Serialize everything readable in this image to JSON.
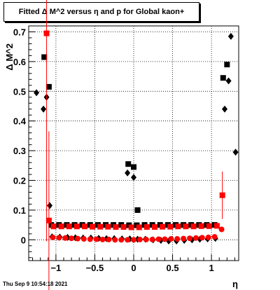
{
  "chart_data": {
    "type": "scatter",
    "title": "Fitted Δ M^2 versus η and p for Global kaon+",
    "xlabel": "η",
    "ylabel": "Δ M^2",
    "xlim": [
      -1.35,
      1.35
    ],
    "ylim": [
      -0.07,
      0.72
    ],
    "grid": true,
    "x_ticks": [
      -1,
      -0.5,
      0,
      0.5,
      1
    ],
    "x_tick_labels": [
      "−1",
      "−0.5",
      "0",
      "0.5",
      "1"
    ],
    "y_ticks": [
      0,
      0.1,
      0.2,
      0.3,
      0.4,
      0.5,
      0.6,
      0.7
    ],
    "y_tick_labels": [
      "0",
      "0.1",
      "0.2",
      "0.3",
      "0.4",
      "0.5",
      "0.6",
      "0.7"
    ],
    "series": [
      {
        "color": "#000000",
        "marker": "square",
        "points": [
          {
            "x": -1.15,
            "y": 0.615
          },
          {
            "x": -1.09,
            "y": 0.515
          },
          {
            "x": -0.07,
            "y": 0.255
          },
          {
            "x": 0.0,
            "y": 0.245
          },
          {
            "x": 0.05,
            "y": 0.1
          },
          {
            "x": 1.15,
            "y": 0.545
          },
          {
            "x": 1.2,
            "y": 0.59
          },
          {
            "x": -1.06,
            "y": 0.05
          },
          {
            "x": -0.96,
            "y": 0.05
          },
          {
            "x": -0.86,
            "y": 0.05
          },
          {
            "x": -0.76,
            "y": 0.05
          },
          {
            "x": -0.66,
            "y": 0.05
          },
          {
            "x": -0.56,
            "y": 0.05
          },
          {
            "x": -0.46,
            "y": 0.05
          },
          {
            "x": -0.36,
            "y": 0.05
          },
          {
            "x": -0.26,
            "y": 0.05
          },
          {
            "x": -0.16,
            "y": 0.05
          },
          {
            "x": -0.06,
            "y": 0.049
          },
          {
            "x": 0.04,
            "y": 0.049
          },
          {
            "x": 0.14,
            "y": 0.05
          },
          {
            "x": 0.24,
            "y": 0.05
          },
          {
            "x": 0.34,
            "y": 0.05
          },
          {
            "x": 0.44,
            "y": 0.05
          },
          {
            "x": 0.54,
            "y": 0.05
          },
          {
            "x": 0.64,
            "y": 0.05
          },
          {
            "x": 0.74,
            "y": 0.05
          },
          {
            "x": 0.84,
            "y": 0.05
          },
          {
            "x": 0.94,
            "y": 0.05
          },
          {
            "x": 1.04,
            "y": 0.05
          }
        ]
      },
      {
        "color": "#000000",
        "marker": "diamond",
        "points": [
          {
            "x": -1.25,
            "y": 0.495
          },
          {
            "x": -1.16,
            "y": 0.44
          },
          {
            "x": -1.12,
            "y": 0.48
          },
          {
            "x": -1.08,
            "y": 0.115
          },
          {
            "x": -0.08,
            "y": 0.225
          },
          {
            "x": 0.0,
            "y": 0.21
          },
          {
            "x": 1.17,
            "y": 0.44
          },
          {
            "x": 1.22,
            "y": 0.535
          },
          {
            "x": 1.25,
            "y": 0.685
          },
          {
            "x": 1.31,
            "y": 0.295
          },
          {
            "x": -1.05,
            "y": 0.01
          },
          {
            "x": -0.95,
            "y": 0.009
          },
          {
            "x": -0.85,
            "y": 0.008
          },
          {
            "x": -0.75,
            "y": 0.007
          },
          {
            "x": -0.65,
            "y": 0.006
          },
          {
            "x": -0.55,
            "y": 0.006
          },
          {
            "x": -0.45,
            "y": 0.005
          },
          {
            "x": -0.35,
            "y": 0.004
          },
          {
            "x": -0.25,
            "y": 0.004
          },
          {
            "x": -0.15,
            "y": 0.003
          },
          {
            "x": -0.05,
            "y": 0.003
          },
          {
            "x": 0.05,
            "y": 0.002
          },
          {
            "x": 0.15,
            "y": 0.002
          },
          {
            "x": 0.25,
            "y": 0.0
          },
          {
            "x": 0.35,
            "y": -0.002
          },
          {
            "x": 0.45,
            "y": -0.004
          },
          {
            "x": 0.55,
            "y": -0.004
          },
          {
            "x": 0.65,
            "y": -0.002
          },
          {
            "x": 0.75,
            "y": 0.0
          },
          {
            "x": 0.85,
            "y": 0.002
          },
          {
            "x": 0.95,
            "y": 0.003
          },
          {
            "x": 1.05,
            "y": 0.005
          }
        ]
      },
      {
        "color": "#ff0000",
        "marker": "square",
        "points": [
          {
            "x": -1.12,
            "y": 0.695,
            "err": 0.7
          },
          {
            "x": -1.09,
            "y": 0.065,
            "err": 0.3
          },
          {
            "x": -1.03,
            "y": 0.045
          },
          {
            "x": -0.93,
            "y": 0.045
          },
          {
            "x": -0.83,
            "y": 0.045
          },
          {
            "x": -0.73,
            "y": 0.045
          },
          {
            "x": -0.63,
            "y": 0.045
          },
          {
            "x": -0.53,
            "y": 0.044
          },
          {
            "x": -0.43,
            "y": 0.044
          },
          {
            "x": -0.33,
            "y": 0.044
          },
          {
            "x": -0.23,
            "y": 0.043
          },
          {
            "x": -0.13,
            "y": 0.043
          },
          {
            "x": -0.03,
            "y": 0.042
          },
          {
            "x": 0.07,
            "y": 0.042
          },
          {
            "x": 0.17,
            "y": 0.043
          },
          {
            "x": 0.27,
            "y": 0.043
          },
          {
            "x": 0.37,
            "y": 0.044
          },
          {
            "x": 0.47,
            "y": 0.044
          },
          {
            "x": 0.57,
            "y": 0.045
          },
          {
            "x": 0.67,
            "y": 0.045
          },
          {
            "x": 0.77,
            "y": 0.045
          },
          {
            "x": 0.87,
            "y": 0.046
          },
          {
            "x": 0.97,
            "y": 0.046
          },
          {
            "x": 1.07,
            "y": 0.047
          },
          {
            "x": 1.14,
            "y": 0.15,
            "err": 0.08
          }
        ]
      },
      {
        "color": "#ff0000",
        "marker": "circle",
        "points": [
          {
            "x": -1.04,
            "y": 0.008
          },
          {
            "x": -0.96,
            "y": 0.007
          },
          {
            "x": -0.88,
            "y": 0.006
          },
          {
            "x": -0.8,
            "y": 0.005
          },
          {
            "x": -0.72,
            "y": 0.004
          },
          {
            "x": -0.64,
            "y": 0.003
          },
          {
            "x": -0.56,
            "y": 0.002
          },
          {
            "x": -0.48,
            "y": 0.002
          },
          {
            "x": -0.4,
            "y": 0.001
          },
          {
            "x": -0.32,
            "y": 0.001
          },
          {
            "x": -0.24,
            "y": 0.0
          },
          {
            "x": -0.16,
            "y": 0.0
          },
          {
            "x": -0.08,
            "y": 0.0
          },
          {
            "x": 0.0,
            "y": 0.0
          },
          {
            "x": 0.08,
            "y": 0.001
          },
          {
            "x": 0.16,
            "y": 0.001
          },
          {
            "x": 0.24,
            "y": 0.001
          },
          {
            "x": 0.32,
            "y": 0.002
          },
          {
            "x": 0.4,
            "y": 0.002
          },
          {
            "x": 0.48,
            "y": 0.003
          },
          {
            "x": 0.56,
            "y": 0.003
          },
          {
            "x": 0.64,
            "y": 0.004
          },
          {
            "x": 0.72,
            "y": 0.005
          },
          {
            "x": 0.8,
            "y": 0.006
          },
          {
            "x": 0.88,
            "y": 0.007
          },
          {
            "x": 0.96,
            "y": 0.008
          },
          {
            "x": 1.04,
            "y": 0.01
          },
          {
            "x": 1.13,
            "y": 0.035
          }
        ]
      }
    ]
  },
  "footer": {
    "timestamp": "Thu Sep  9 10:54:18 2021"
  }
}
